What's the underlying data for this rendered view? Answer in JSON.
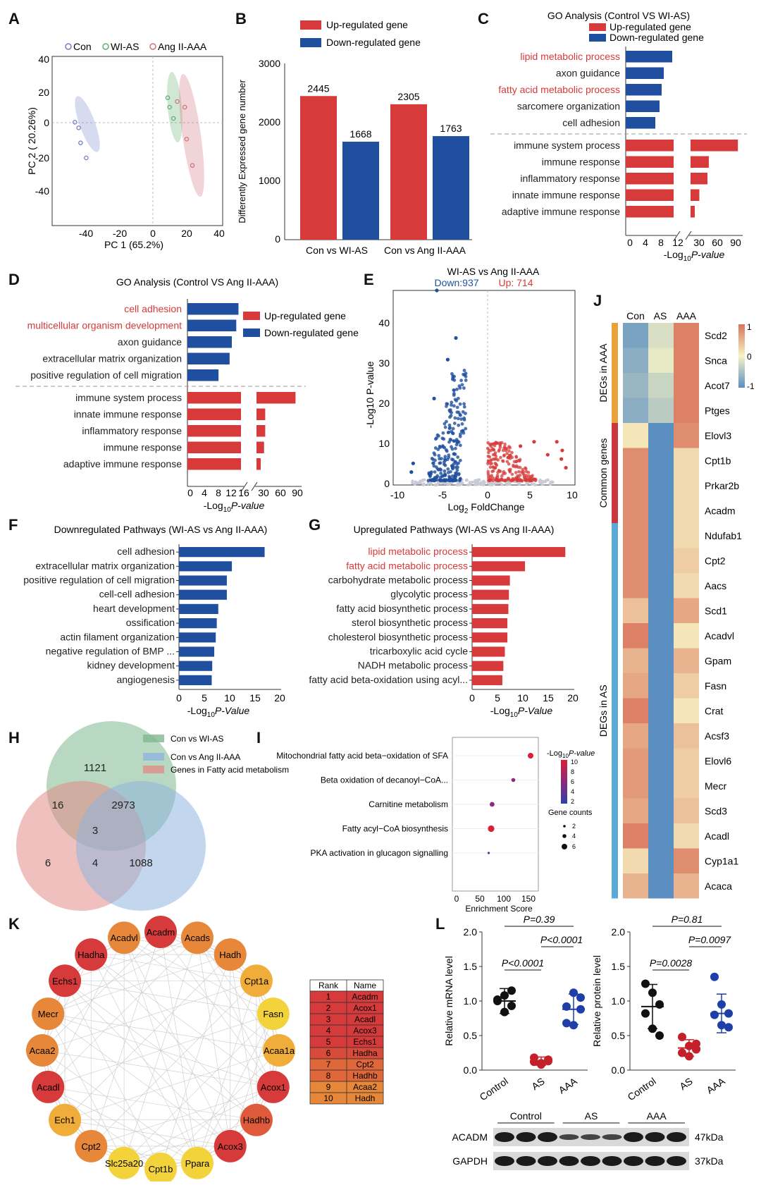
{
  "panels": {
    "A": "A",
    "B": "B",
    "C": "C",
    "D": "D",
    "E": "E",
    "F": "F",
    "G": "G",
    "H": "H",
    "I": "I",
    "J": "J",
    "K": "K",
    "L": "L"
  },
  "colors": {
    "up": "#d63a3a",
    "down": "#1f4f9e",
    "con": "#6f7fc4",
    "wias": "#5fb06e",
    "aaa": "#d2707a",
    "highlight": "#d63a3a"
  },
  "chart_data": [
    {
      "id": "A",
      "type": "scatter",
      "legend": [
        "Con",
        "WI-AS",
        "Ang II-AAA"
      ],
      "xlabel": "PC 1 (65.2%)",
      "ylabel": "PC 2 ( 20.26%)",
      "xlim": [
        -50,
        40
      ],
      "ylim": [
        -50,
        40
      ],
      "xticks": [
        "-40",
        "-20",
        "0",
        "20",
        "40"
      ],
      "yticks": [
        "40",
        "20",
        "0",
        "-20",
        "-40"
      ],
      "series": [
        {
          "name": "Con",
          "x": [
            -38,
            -36,
            -35,
            -32
          ],
          "y": [
            5,
            2,
            -6,
            -14
          ]
        },
        {
          "name": "WI-AS",
          "x": [
            11,
            12,
            14
          ],
          "y": [
            18,
            13,
            7
          ]
        },
        {
          "name": "Ang II-AAA",
          "x": [
            16,
            20,
            21,
            24
          ],
          "y": [
            16,
            13,
            -4,
            -18
          ]
        }
      ]
    },
    {
      "id": "B",
      "type": "bar",
      "legend": [
        "Up-regulated gene",
        "Down-regulated gene"
      ],
      "ylabel": "Differently Expressed gene number",
      "ylim": [
        0,
        3000
      ],
      "yticks": [
        "3000",
        "2000",
        "1000",
        "0"
      ],
      "categories": [
        "Con vs WI-AS",
        "Con vs Ang II-AAA"
      ],
      "series": [
        {
          "name": "Up-regulated gene",
          "values": [
            2445,
            2305
          ],
          "labels": [
            "2445",
            "2305"
          ]
        },
        {
          "name": "Down-regulated gene",
          "values": [
            1668,
            1763
          ],
          "labels": [
            "1668",
            "1763"
          ]
        }
      ]
    },
    {
      "id": "C",
      "type": "bar",
      "title": "GO Analysis (Control VS WI-AS)",
      "legend": [
        "Up-regulated gene",
        "Down-regulated gene"
      ],
      "down_terms": [
        "lipid metabolic process",
        "axon guidance",
        "fatty acid metabolic process",
        "sarcomere organization",
        "cell adhesion"
      ],
      "down_values": [
        11,
        9,
        8.5,
        8,
        7
      ],
      "down_highlight": [
        true,
        false,
        true,
        false,
        false
      ],
      "up_terms": [
        "immune system process",
        "immune response",
        "inflammatory response",
        "innate immune response",
        "adaptive immune response"
      ],
      "up_values": [
        95,
        52,
        50,
        38,
        28
      ],
      "xticks_left": [
        "0",
        "4",
        "8",
        "12"
      ],
      "xticks_right": [
        "30",
        "60",
        "90"
      ],
      "xlabel_prefix": "-Log",
      "xlabel_sub": "10",
      "xlabel_suffix": "P-value"
    },
    {
      "id": "D",
      "type": "bar",
      "title": "GO Analysis (Control VS Ang II-AAA)",
      "legend": [
        "Up-regulated gene",
        "Down-regulated gene"
      ],
      "down_terms": [
        "cell adhesion",
        "multicellular organism development",
        "axon guidance",
        "extracellular matrix organization",
        "positive regulation of cell migration"
      ],
      "down_values": [
        11.5,
        11,
        10,
        9.5,
        7
      ],
      "down_highlight": [
        true,
        true,
        false,
        false,
        false
      ],
      "up_terms": [
        "immune system process",
        "innate immune response",
        "inflammatory response",
        "immune response",
        "adaptive immune response"
      ],
      "up_values": [
        92,
        40,
        40,
        38,
        30
      ],
      "xticks_left": [
        "0",
        "4",
        "8",
        "12",
        "16"
      ],
      "xticks_right": [
        "30",
        "60",
        "90"
      ],
      "xlabel_prefix": "-Log",
      "xlabel_sub": "10",
      "xlabel_suffix": "P-value"
    },
    {
      "id": "E",
      "type": "scatter",
      "title": "WI-AS vs Ang II-AAA",
      "down_label": "Down:937",
      "up_label": "Up: 714",
      "xlim": [
        -10,
        10
      ],
      "ylim": [
        0,
        45
      ],
      "xticks": [
        "-10",
        "-5",
        "0",
        "5",
        "10"
      ],
      "yticks": [
        "0",
        "10",
        "20",
        "30",
        "40"
      ],
      "xlabel_prefix": "Log",
      "xlabel_sub": "2",
      "xlabel_suffix": " FoldChange",
      "ylabel": "-Log10 P-value"
    },
    {
      "id": "F",
      "type": "bar",
      "title": "Downregulated Pathways (WI-AS vs Ang II-AAA)",
      "categories": [
        "cell adhesion",
        "extracellular matrix organization",
        "positive regulation of cell migration",
        "cell-cell adhesion",
        "heart development",
        "ossification",
        "actin filament organization",
        "negative regulation of BMP ...",
        "kidney development",
        "angiogenesis"
      ],
      "values": [
        17,
        10.5,
        9.5,
        9.5,
        7.8,
        7.5,
        7.3,
        7,
        6.6,
        6.5
      ],
      "xlim": [
        0,
        20
      ],
      "xticks": [
        "0",
        "5",
        "10",
        "15",
        "20"
      ],
      "xlabel_prefix": "-Log",
      "xlabel_sub": "10",
      "xlabel_suffix": "P-Value"
    },
    {
      "id": "G",
      "type": "bar",
      "title": "Upregulated Pathways (WI-AS vs Ang II-AAA)",
      "categories": [
        "lipid metabolic process",
        "fatty acid metabolic process",
        "carbohydrate metabolic process",
        "glycolytic process",
        "fatty acid biosynthetic process",
        "sterol biosynthetic process",
        "cholesterol biosynthetic process",
        "tricarboxylic acid cycle",
        "NADH metabolic process",
        "fatty acid beta-oxidation using acyl..."
      ],
      "highlight": [
        true,
        true,
        false,
        false,
        false,
        false,
        false,
        false,
        false,
        false
      ],
      "values": [
        18.5,
        10.5,
        7.5,
        7.3,
        7.2,
        7,
        7,
        6.5,
        6.2,
        6
      ],
      "xlim": [
        0,
        20
      ],
      "xticks": [
        "0",
        "5",
        "10",
        "15",
        "20"
      ],
      "xlabel_prefix": "-Log",
      "xlabel_sub": "10",
      "xlabel_suffix": "P-Value"
    },
    {
      "id": "H",
      "type": "table",
      "legend": [
        "Con vs WI-AS",
        "Con vs Ang II-AAA",
        "Genes in Fatty acid metabolism"
      ],
      "counts": {
        "top_only": "1121",
        "top_left": "16",
        "top_right": "2973",
        "center": "3",
        "left_only": "6",
        "left_right": "4",
        "right_only": "1088"
      }
    },
    {
      "id": "I",
      "type": "scatter",
      "categories": [
        "Mitochondrial fatty acid beta−oxidation of SFA",
        "Beta oxidation of decanoyl−CoA...",
        "Carnitine metabolism",
        "Fatty acyl−CoA biosynthesis",
        "PKA activation in glucagon signalling"
      ],
      "enrichment": [
        150,
        115,
        72,
        70,
        65
      ],
      "neglogp": [
        10,
        5,
        5,
        10,
        2
      ],
      "gene_counts": [
        5,
        3,
        4,
        6,
        1
      ],
      "xlim": [
        0,
        160
      ],
      "xticks": [
        "0",
        "50",
        "100",
        "150"
      ],
      "xlabel": "Enrichment Score",
      "color_legend_title_prefix": "-Log",
      "color_legend_title_sub": "10",
      "color_legend_title_suffix": "P-value",
      "color_ticks": [
        "10",
        "8",
        "6",
        "4",
        "2"
      ],
      "size_legend_title": "Gene counts",
      "size_ticks": [
        "2",
        "4",
        "6"
      ]
    },
    {
      "id": "J",
      "type": "heatmap",
      "columns": [
        "Con",
        "AS",
        "AAA"
      ],
      "genes": [
        "Scd2",
        "Snca",
        "Acot7",
        "Ptges",
        "Elovl3",
        "Cpt1b",
        "Prkar2b",
        "Acadm",
        "Ndufab1",
        "Cpt2",
        "Aacs",
        "Scd1",
        "Acadvl",
        "Gpam",
        "Fasn",
        "Crat",
        "Acsf3",
        "Elovl6",
        "Mecr",
        "Scd3",
        "Acadl",
        "Cyp1a1",
        "Acaca"
      ],
      "values": [
        [
          -0.8,
          -0.2,
          0.9
        ],
        [
          -0.7,
          -0.1,
          0.9
        ],
        [
          -0.6,
          -0.3,
          0.9
        ],
        [
          -0.7,
          -0.4,
          0.9
        ],
        [
          0.1,
          -1,
          0.8
        ],
        [
          0.8,
          -1,
          0.2
        ],
        [
          0.8,
          -1,
          0.2
        ],
        [
          0.8,
          -1,
          0.2
        ],
        [
          0.8,
          -1,
          0.2
        ],
        [
          0.8,
          -1,
          0.3
        ],
        [
          0.8,
          -1,
          0.2
        ],
        [
          0.4,
          -1,
          0.6
        ],
        [
          0.9,
          -1,
          0.1
        ],
        [
          0.5,
          -1,
          0.5
        ],
        [
          0.6,
          -1,
          0.3
        ],
        [
          0.9,
          -1,
          0.1
        ],
        [
          0.6,
          -1,
          0.4
        ],
        [
          0.7,
          -1,
          0.3
        ],
        [
          0.7,
          -1,
          0.3
        ],
        [
          0.6,
          -1,
          0.4
        ],
        [
          0.9,
          -1,
          0.2
        ],
        [
          0.2,
          -1,
          0.8
        ],
        [
          0.5,
          -1,
          0.5
        ]
      ],
      "groups": [
        {
          "label": "DEGs in AAA",
          "count": 4,
          "color": "#e8a23a"
        },
        {
          "label": "Common genes",
          "count": 4,
          "color": "#c8383e"
        },
        {
          "label": "DEGs in AS",
          "count": 15,
          "color": "#5aa9d6"
        }
      ],
      "scale_ticks": [
        "1",
        "0",
        "-1"
      ]
    },
    {
      "id": "K",
      "type": "table",
      "nodes": [
        "Acadm",
        "Acads",
        "Hadh",
        "Cpt1a",
        "Fasn",
        "Acaa1a",
        "Acox1",
        "Hadhb",
        "Acox3",
        "Ppara",
        "Cpt1b",
        "Slc25a20",
        "Cpt2",
        "Ech1",
        "Acadl",
        "Acaa2",
        "Mecr",
        "Echs1",
        "Hadha",
        "Acadvl"
      ],
      "node_colors": [
        "#d63a3a",
        "#e7873a",
        "#e7873a",
        "#f0ad3a",
        "#f3d33c",
        "#f0ad3a",
        "#d63a3a",
        "#de5a3a",
        "#d63a3a",
        "#f3d33c",
        "#f3d33c",
        "#f3d33c",
        "#e7873a",
        "#f0ad3a",
        "#d63a3a",
        "#e7873a",
        "#e7873a",
        "#d63a3a",
        "#d63a3a",
        "#e7873a"
      ],
      "rank_header": "Rank",
      "name_header": "Name",
      "ranks": [
        "1",
        "2",
        "3",
        "4",
        "5",
        "6",
        "7",
        "8",
        "9",
        "10"
      ],
      "names": [
        "Acadm",
        "Acox1",
        "Acadl",
        "Acox3",
        "Echs1",
        "Hadha",
        "Cpt2",
        "Hadhb",
        "Acaa2",
        "Hadh"
      ],
      "rank_colors": [
        "#d63a3a",
        "#d63a3a",
        "#d63a3a",
        "#d63a3a",
        "#d63a3a",
        "#d84a3a",
        "#e0673a",
        "#e0673a",
        "#e7873a",
        "#e7873a"
      ]
    },
    {
      "id": "L",
      "type": "scatter",
      "categories": [
        "Control",
        "AS",
        "AAA"
      ],
      "mrna": {
        "ylabel": "Relative mRNA level",
        "ylim": [
          0,
          2
        ],
        "yticks": [
          "0.0",
          "0.5",
          "1.0",
          "1.5",
          "2.0"
        ],
        "means": [
          1.0,
          0.13,
          0.88
        ],
        "sd": [
          0.18,
          0.06,
          0.22
        ],
        "points": [
          [
            1.0,
            1.08,
            0.93,
            1.02,
            0.84,
            1.15
          ],
          [
            0.12,
            0.08,
            0.15,
            0.18,
            0.1,
            0.13
          ],
          [
            0.92,
            1.12,
            0.88,
            0.68,
            0.65,
            1.05
          ]
        ],
        "p_top": "P=0.39",
        "p_mid": "P<0.0001",
        "p_left": "P<0.0001"
      },
      "protein": {
        "ylabel": "Relative protein level",
        "ylim": [
          0,
          2
        ],
        "yticks": [
          "0.0",
          "0.5",
          "1.0",
          "1.5",
          "2.0"
        ],
        "means": [
          0.92,
          0.32,
          0.82
        ],
        "sd": [
          0.32,
          0.12,
          0.28
        ],
        "points": [
          [
            1.25,
            1.12,
            0.95,
            0.82,
            0.6,
            0.5
          ],
          [
            0.48,
            0.35,
            0.3,
            0.25,
            0.2,
            0.38
          ],
          [
            1.35,
            0.95,
            0.82,
            0.8,
            0.65,
            0.62
          ]
        ],
        "p_top": "P=0.81",
        "p_mid": "P=0.0097",
        "p_left": "P=0.0028"
      },
      "blot_groups": [
        "Control",
        "AS",
        "AAA"
      ],
      "blot_rows": [
        {
          "name": "ACADM",
          "size": "47kDa"
        },
        {
          "name": "GAPDH",
          "size": "37kDa"
        }
      ]
    }
  ]
}
